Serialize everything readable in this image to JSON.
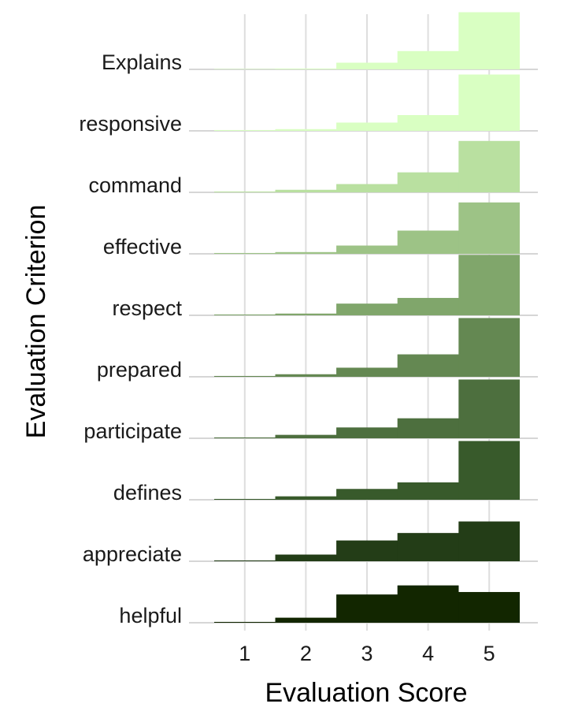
{
  "chart_data": {
    "type": "ridgeline-step-histogram",
    "title": "",
    "xlabel": "Evaluation Score",
    "ylabel": "Evaluation Criterion",
    "x_ticks": [
      1,
      2,
      3,
      4,
      5
    ],
    "xlim": [
      0.5,
      5.5
    ],
    "grid": "vertical",
    "categories": [
      "Explains",
      "responsive",
      "command",
      "effective",
      "respect",
      "prepared",
      "participate",
      "defines",
      "appreciate",
      "helpful"
    ],
    "series": [
      {
        "category": "Explains",
        "values": [
          0.005,
          0.01,
          0.08,
          0.22,
          0.69
        ],
        "color": "#d9ffc2"
      },
      {
        "category": "responsive",
        "values": [
          0.01,
          0.02,
          0.1,
          0.19,
          0.68
        ],
        "color": "#d9ffc2"
      },
      {
        "category": "command",
        "values": [
          0.01,
          0.03,
          0.1,
          0.24,
          0.62
        ],
        "color": "#b9e0a0"
      },
      {
        "category": "effective",
        "values": [
          0.01,
          0.02,
          0.1,
          0.28,
          0.62
        ],
        "color": "#9dc386"
      },
      {
        "category": "respect",
        "values": [
          0.01,
          0.02,
          0.14,
          0.21,
          0.73
        ],
        "color": "#80a66b"
      },
      {
        "category": "prepared",
        "values": [
          0.01,
          0.03,
          0.11,
          0.27,
          0.71
        ],
        "color": "#648852"
      },
      {
        "category": "participate",
        "values": [
          0.01,
          0.04,
          0.13,
          0.24,
          0.71
        ],
        "color": "#4d6f3e"
      },
      {
        "category": "defines",
        "values": [
          0.01,
          0.04,
          0.13,
          0.21,
          0.71
        ],
        "color": "#385a2b"
      },
      {
        "category": "appreciate",
        "values": [
          0.01,
          0.08,
          0.25,
          0.34,
          0.48
        ],
        "color": "#233d17"
      },
      {
        "category": "helpful",
        "values": [
          0.01,
          0.06,
          0.34,
          0.45,
          0.37
        ],
        "color": "#122600"
      }
    ],
    "row_height": 0.75
  }
}
